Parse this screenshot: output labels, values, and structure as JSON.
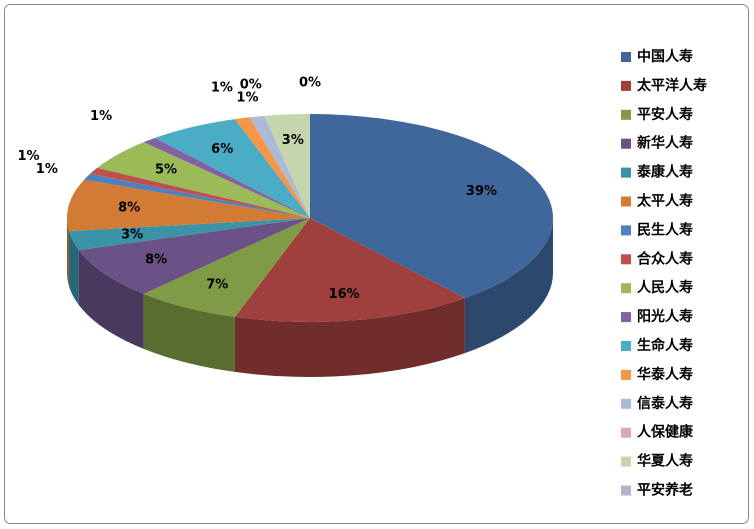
{
  "chart_data": {
    "type": "pie",
    "categories": [
      "中国人寿",
      "太平洋人寿",
      "平安人寿",
      "新华人寿",
      "泰康人寿",
      "太平人寿",
      "民生人寿",
      "合众人寿",
      "人民人寿",
      "阳光人寿",
      "生命人寿",
      "华泰人寿",
      "信泰人寿",
      "人保健康",
      "华夏人寿",
      "平安养老"
    ],
    "values": [
      39,
      16,
      7,
      8,
      3,
      8,
      1,
      1,
      5,
      1,
      6,
      1,
      1,
      0,
      3,
      0
    ],
    "value_labels": [
      "39%",
      "16%",
      "7%",
      "8%",
      "3%",
      "8%",
      "1%",
      "1%",
      "5%",
      "1%",
      "6%",
      "1%",
      "1%",
      "0%",
      "3%",
      "0%"
    ],
    "colors": [
      "#3F679B",
      "#A0403D",
      "#7F9B45",
      "#6A5186",
      "#3B93A8",
      "#D27B35",
      "#4F81BD",
      "#C0504D",
      "#9BBB59",
      "#8064A2",
      "#4BACC6",
      "#F79646",
      "#AABAD7",
      "#D9AAA9",
      "#C6D6AC",
      "#BAB0C9"
    ],
    "legend_position": "right"
  }
}
